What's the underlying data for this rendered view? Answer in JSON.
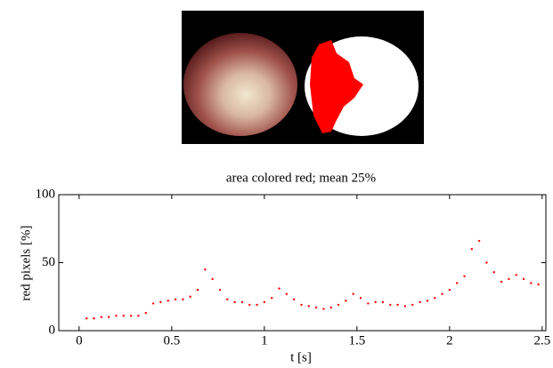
{
  "chart_data": {
    "type": "scatter",
    "title": "area colored red; mean 25%",
    "xlabel": "t [s]",
    "ylabel": "red pixels  [%]",
    "x": [
      0.04,
      0.08,
      0.12,
      0.16,
      0.2,
      0.24,
      0.28,
      0.32,
      0.36,
      0.4,
      0.44,
      0.48,
      0.52,
      0.56,
      0.6,
      0.64,
      0.68,
      0.72,
      0.76,
      0.8,
      0.84,
      0.88,
      0.92,
      0.96,
      1.0,
      1.04,
      1.08,
      1.12,
      1.16,
      1.2,
      1.24,
      1.28,
      1.32,
      1.36,
      1.4,
      1.44,
      1.48,
      1.52,
      1.56,
      1.6,
      1.64,
      1.68,
      1.72,
      1.76,
      1.8,
      1.84,
      1.88,
      1.92,
      1.96,
      2.0,
      2.04,
      2.08,
      2.12,
      2.16,
      2.2,
      2.24,
      2.28,
      2.32,
      2.36,
      2.4,
      2.44,
      2.48
    ],
    "values": [
      9,
      9,
      10,
      10,
      11,
      11,
      11,
      11,
      13,
      20,
      21,
      22,
      23,
      23,
      25,
      30,
      45,
      38,
      30,
      23,
      21,
      21,
      19,
      19,
      21,
      24,
      31,
      27,
      23,
      19,
      18,
      17,
      16,
      17,
      19,
      22,
      27,
      24,
      20,
      21,
      21,
      19,
      19,
      18,
      19,
      21,
      22,
      24,
      27,
      30,
      35,
      40,
      60,
      66,
      50,
      43,
      36,
      38,
      41,
      38,
      35,
      34
    ],
    "color": "#ff0000",
    "xlim": [
      -0.11,
      2.52
    ],
    "xticks": [
      0,
      0.5,
      1,
      1.5,
      2,
      2.5
    ],
    "ylim": [
      0,
      100
    ],
    "yticks": [
      0,
      50,
      100
    ]
  }
}
